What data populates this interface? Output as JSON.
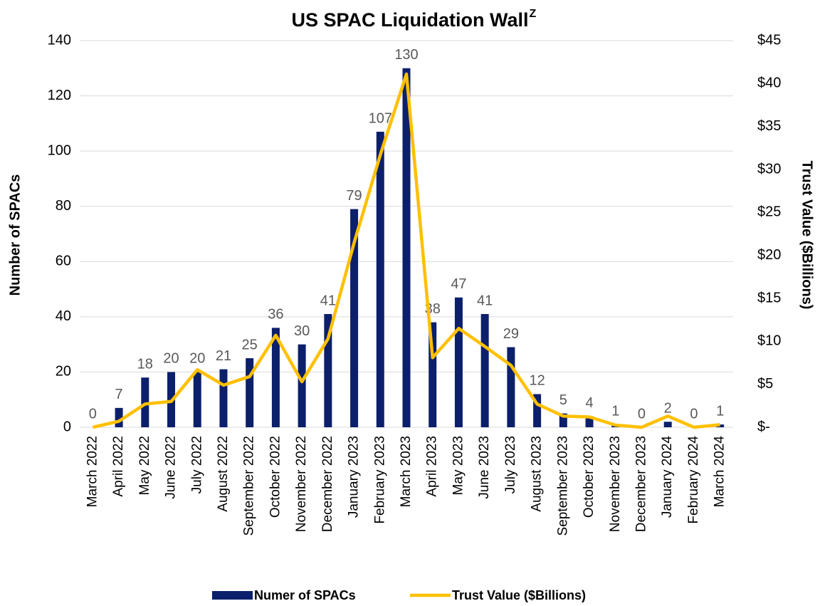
{
  "chart_data": {
    "type": "bar",
    "title": "US SPAC Liquidation Wall",
    "title_superscript": "Z",
    "y_label": "Number of SPACs",
    "y2_label": "Trust Value ($Billions)",
    "categories": [
      "March 2022",
      "April 2022",
      "May 2022",
      "June 2022",
      "July 2022",
      "August 2022",
      "September 2022",
      "October 2022",
      "November 2022",
      "December 2022",
      "January 2023",
      "February 2023",
      "March 2023",
      "April 2023",
      "May 2023",
      "June 2023",
      "July 2023",
      "August 2023",
      "September 2023",
      "October 2023",
      "November 2023",
      "December 2023",
      "January 2024",
      "February 2024",
      "March 2024"
    ],
    "series": [
      {
        "name": "Numer of SPACs",
        "type": "bar",
        "color": "#0c1f6b",
        "values": [
          0,
          7,
          18,
          20,
          20,
          21,
          25,
          36,
          30,
          41,
          79,
          107,
          130,
          38,
          47,
          41,
          29,
          12,
          5,
          4,
          1,
          0,
          2,
          0,
          1
        ]
      },
      {
        "name": "Trust Value ($Billions)",
        "type": "line",
        "axis": "y2",
        "color": "#ffc000",
        "values": [
          0,
          0.7,
          2.7,
          3.0,
          6.7,
          4.9,
          5.9,
          10.7,
          5.3,
          10.3,
          21.5,
          31.7,
          41.1,
          8.1,
          11.5,
          9.4,
          7.2,
          2.7,
          1.3,
          1.2,
          0.25,
          0,
          1.3,
          0,
          0.3
        ]
      }
    ],
    "ylim": [
      0,
      140
    ],
    "yticks": [
      0,
      20,
      40,
      60,
      80,
      100,
      120,
      140
    ],
    "y2lim": [
      0,
      45
    ],
    "y2ticks": [
      {
        "value": 0,
        "label": "$-"
      },
      {
        "value": 5,
        "label": "$5"
      },
      {
        "value": 10,
        "label": "$10"
      },
      {
        "value": 15,
        "label": "$15"
      },
      {
        "value": 20,
        "label": "$20"
      },
      {
        "value": 25,
        "label": "$25"
      },
      {
        "value": 30,
        "label": "$30"
      },
      {
        "value": 35,
        "label": "$35"
      },
      {
        "value": 40,
        "label": "$40"
      },
      {
        "value": 45,
        "label": "$45"
      }
    ],
    "grid": true,
    "legend": "bottom",
    "data_labels": true
  }
}
